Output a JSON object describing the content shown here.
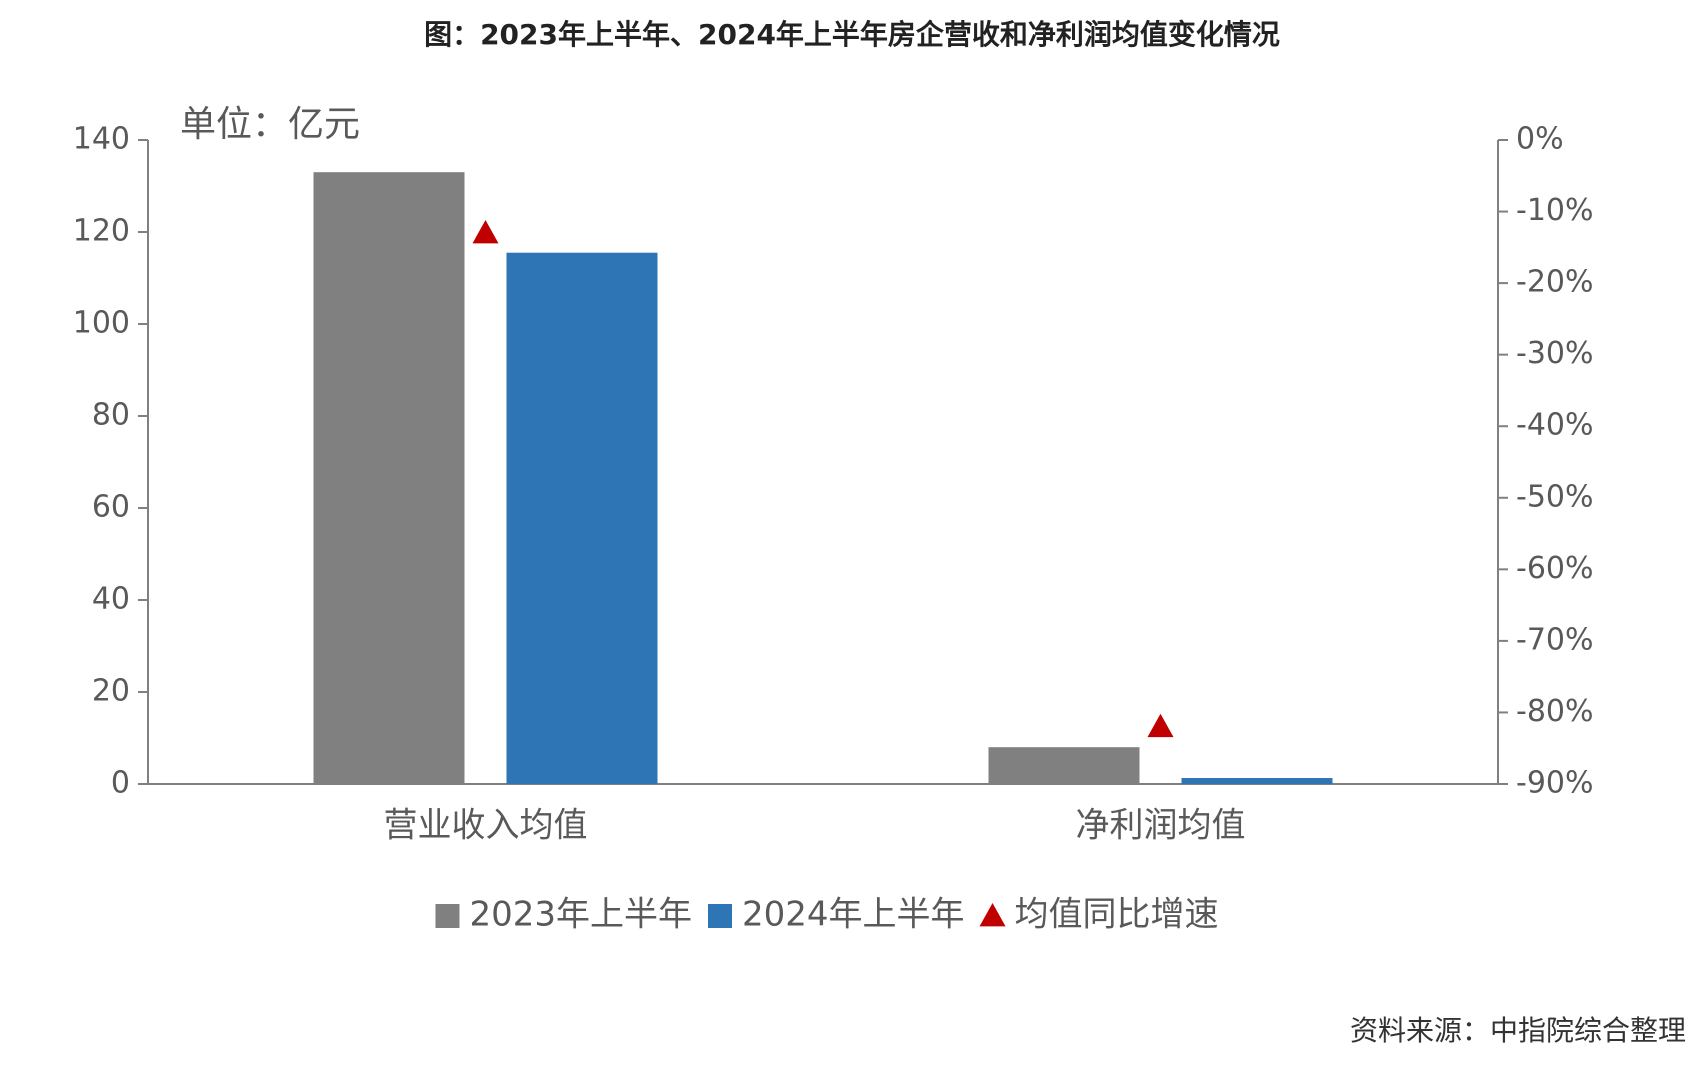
{
  "chart_data": {
    "type": "bar",
    "title": "图：2023年上半年、2024年上半年房企营收和净利润均值变化情况",
    "unit_label": "单位：亿元",
    "source": "资料来源：中指院综合整理",
    "categories": [
      "营业收入均值",
      "净利润均值"
    ],
    "series": [
      {
        "name": "2023年上半年",
        "color": "#808080",
        "values": [
          133,
          8
        ]
      },
      {
        "name": "2024年上半年",
        "color": "#2e75b6",
        "values": [
          115.5,
          1.3
        ]
      },
      {
        "name": "均值同比增速",
        "color": "#c00000",
        "axis": "y2",
        "type": "scatter",
        "values": [
          -13,
          -82
        ]
      }
    ],
    "ylim": [
      0,
      140
    ],
    "yticks": [
      0,
      20,
      40,
      60,
      80,
      100,
      120,
      140
    ],
    "y2lim": [
      -90,
      0
    ],
    "y2ticks": [
      {
        "value": 0,
        "label": "0%"
      },
      {
        "value": -10,
        "label": "-10%"
      },
      {
        "value": -20,
        "label": "-20%"
      },
      {
        "value": -30,
        "label": "-30%"
      },
      {
        "value": -40,
        "label": "-40%"
      },
      {
        "value": -50,
        "label": "-50%"
      },
      {
        "value": -60,
        "label": "-60%"
      },
      {
        "value": -70,
        "label": "-70%"
      },
      {
        "value": -80,
        "label": "-80%"
      },
      {
        "value": -90,
        "label": "-90%"
      }
    ],
    "grid": false
  }
}
